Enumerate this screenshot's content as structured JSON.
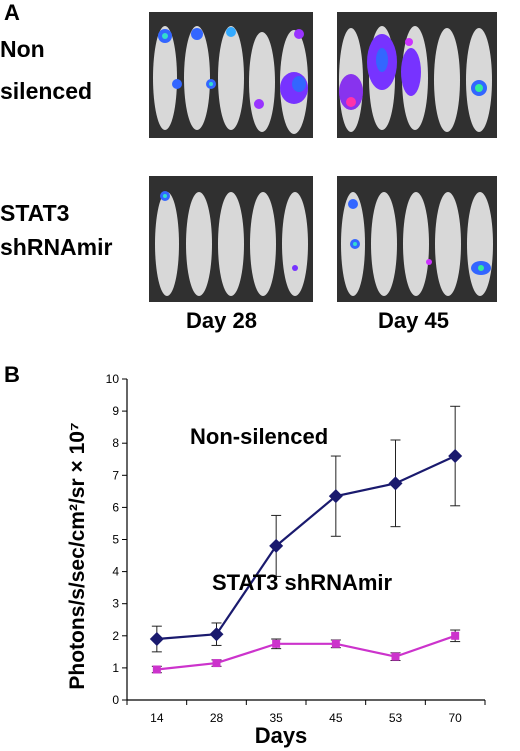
{
  "panel_a": {
    "letter": "A",
    "rows": [
      {
        "label_lines": [
          "Non",
          "silenced"
        ]
      },
      {
        "label_lines": [
          "STAT3",
          "shRNAmir"
        ]
      }
    ],
    "day_labels": [
      "Day  28",
      "Day  45"
    ]
  },
  "panel_b": {
    "letter": "B"
  },
  "colors": {
    "non_silenced": "#1a1a6e",
    "stat3": "#cc33cc",
    "error_bar": "#222222"
  },
  "chart_data": {
    "type": "line",
    "categories": [
      "14",
      "28",
      "35",
      "45",
      "53",
      "70"
    ],
    "xlabel": "Days",
    "ylabel": "Photons/s/sec/cm²/sr × 10⁷",
    "ylim": [
      0,
      10
    ],
    "yticks": [
      "0",
      "1",
      "2",
      "3",
      "4",
      "5",
      "6",
      "7",
      "8",
      "9",
      "10"
    ],
    "grid": false,
    "series": [
      {
        "name": "Non-silenced",
        "values": [
          1.9,
          2.05,
          4.8,
          6.35,
          6.75,
          7.6
        ],
        "errors": [
          0.4,
          0.35,
          0.95,
          1.25,
          1.35,
          1.55
        ]
      },
      {
        "name": "STAT3 shRNAmir",
        "values": [
          0.95,
          1.15,
          1.75,
          1.75,
          1.35,
          2.0
        ],
        "errors": [
          0.1,
          0.1,
          0.15,
          0.12,
          0.12,
          0.18
        ]
      }
    ]
  }
}
